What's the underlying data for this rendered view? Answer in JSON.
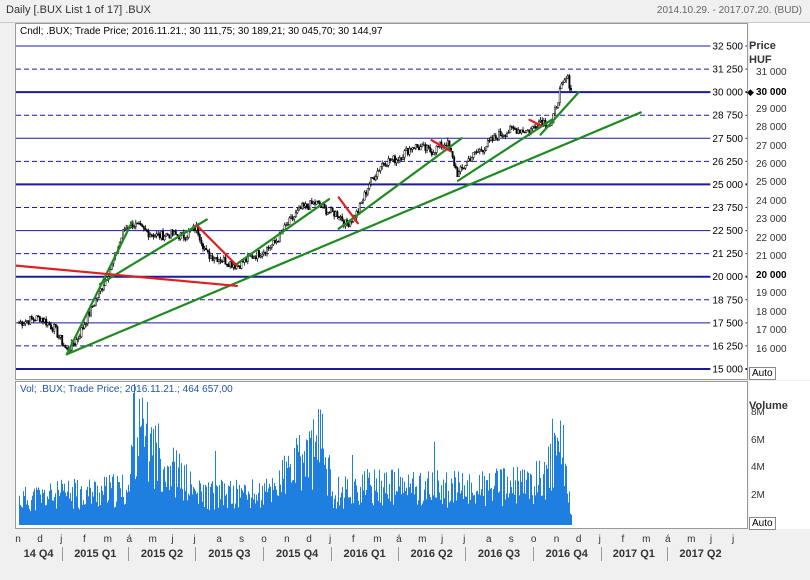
{
  "window": {
    "title": "Daily [.BUX List 1 of 17] .BUX",
    "date_range": "2014.10.29. - 2017.07.20. (BUD)"
  },
  "price_panel": {
    "header": "Cndl; .BUX; Trade Price; 2016.11.21.; 30 111,75; 30 189,21; 30 045,70; 30 144,97",
    "axis_title": "Price",
    "axis_unit": "HUF",
    "current_marker": "30 000",
    "auto_label": "Auto",
    "reference_lines": [
      {
        "value": 32500,
        "label": "32 500",
        "style": "solid"
      },
      {
        "value": 31250,
        "label": "31 250",
        "style": "dashed"
      },
      {
        "value": 30000,
        "label": "30 000",
        "style": "bold"
      },
      {
        "value": 28750,
        "label": "28 750",
        "style": "dashed"
      },
      {
        "value": 27500,
        "label": "27 500",
        "style": "solid"
      },
      {
        "value": 26250,
        "label": "26 250",
        "style": "dashed"
      },
      {
        "value": 25000,
        "label": "25 000",
        "style": "bold"
      },
      {
        "value": 23750,
        "label": "23 750",
        "style": "dashed"
      },
      {
        "value": 22500,
        "label": "22 500",
        "style": "solid"
      },
      {
        "value": 21250,
        "label": "21 250",
        "style": "dashed"
      },
      {
        "value": 20000,
        "label": "20 000",
        "style": "bold"
      },
      {
        "value": 18750,
        "label": "18 750",
        "style": "dashed"
      },
      {
        "value": 17500,
        "label": "17 500",
        "style": "solid"
      },
      {
        "value": 16250,
        "label": "16 250",
        "style": "dashed"
      },
      {
        "value": 15000,
        "label": "15 000",
        "style": "bold"
      }
    ],
    "right_ticks": [
      {
        "value": 31000,
        "label": "31 000",
        "bold": false
      },
      {
        "value": 30000,
        "label": "30 000",
        "bold": true
      },
      {
        "value": 29000,
        "label": "29 000",
        "bold": false
      },
      {
        "value": 28000,
        "label": "28 000",
        "bold": false
      },
      {
        "value": 27000,
        "label": "27 000",
        "bold": false
      },
      {
        "value": 26000,
        "label": "26 000",
        "bold": false
      },
      {
        "value": 25000,
        "label": "25 000",
        "bold": false
      },
      {
        "value": 24000,
        "label": "24 000",
        "bold": false
      },
      {
        "value": 23000,
        "label": "23 000",
        "bold": false
      },
      {
        "value": 22000,
        "label": "22 000",
        "bold": false
      },
      {
        "value": 21000,
        "label": "21 000",
        "bold": false
      },
      {
        "value": 20000,
        "label": "20 000",
        "bold": true
      },
      {
        "value": 19000,
        "label": "19 000",
        "bold": false
      },
      {
        "value": 18000,
        "label": "18 000",
        "bold": false
      },
      {
        "value": 17000,
        "label": "17 000",
        "bold": false
      },
      {
        "value": 16000,
        "label": "16 000",
        "bold": false
      }
    ],
    "colors": {
      "ref_line": "#1a1aa0",
      "up_trend": "#1f8a1f",
      "down_trend": "#e02020",
      "candle": "#000000"
    }
  },
  "volume_panel": {
    "header": "Vol; .BUX; Trade Price; 2016.11.21.; 464 657,00",
    "axis_title": "Volume",
    "auto_label": "Auto",
    "ticks": [
      {
        "value": 8000000,
        "label": "8M"
      },
      {
        "value": 6000000,
        "label": "6M"
      },
      {
        "value": 4000000,
        "label": "4M"
      },
      {
        "value": 2000000,
        "label": "2M"
      }
    ],
    "bar_color": "#1e7fe0"
  },
  "time_axis": {
    "months": [
      "n",
      "d",
      "j",
      "f",
      "m",
      "á",
      "m",
      "j",
      "j",
      "a",
      "s",
      "o",
      "n",
      "d",
      "j",
      "f",
      "m",
      "á",
      "m",
      "j",
      "j",
      "a",
      "s",
      "o",
      "n",
      "d",
      "j",
      "f",
      "m",
      "á",
      "m",
      "j",
      "j"
    ],
    "quarters": [
      "14 Q4",
      "2015 Q1",
      "2015 Q2",
      "2015 Q3",
      "2015 Q4",
      "2016 Q1",
      "2016 Q2",
      "2016 Q3",
      "2016 Q4",
      "2017 Q1",
      "2017 Q2"
    ]
  },
  "chart_data": {
    "type": "candlestick",
    "instrument": ".BUX",
    "x_range": [
      "2014.10.29.",
      "2017.07.20."
    ],
    "y_range": [
      15000,
      32500
    ],
    "close_path": [
      [
        "2014-11-01",
        17500
      ],
      [
        "2014-12-01",
        17800
      ],
      [
        "2014-12-20",
        17200
      ],
      [
        "2015-01-06",
        16000
      ],
      [
        "2015-01-20",
        16600
      ],
      [
        "2015-02-05",
        18000
      ],
      [
        "2015-02-20",
        19200
      ],
      [
        "2015-03-10",
        20800
      ],
      [
        "2015-03-25",
        22600
      ],
      [
        "2015-04-05",
        22900
      ],
      [
        "2015-04-20",
        22500
      ],
      [
        "2015-05-10",
        22200
      ],
      [
        "2015-05-25",
        22300
      ],
      [
        "2015-06-15",
        22200
      ],
      [
        "2015-07-01",
        22700
      ],
      [
        "2015-07-15",
        21200
      ],
      [
        "2015-08-01",
        21000
      ],
      [
        "2015-08-25",
        20600
      ],
      [
        "2015-09-10",
        21000
      ],
      [
        "2015-09-25",
        21300
      ],
      [
        "2015-10-15",
        21800
      ],
      [
        "2015-11-01",
        22800
      ],
      [
        "2015-11-20",
        23700
      ],
      [
        "2015-12-10",
        24000
      ],
      [
        "2015-12-28",
        23500
      ],
      [
        "2016-01-10",
        23400
      ],
      [
        "2016-01-20",
        22800
      ],
      [
        "2016-02-05",
        23500
      ],
      [
        "2016-02-20",
        25000
      ],
      [
        "2016-03-10",
        26200
      ],
      [
        "2016-03-30",
        26400
      ],
      [
        "2016-04-20",
        27100
      ],
      [
        "2016-05-15",
        26800
      ],
      [
        "2016-06-05",
        27300
      ],
      [
        "2016-06-20",
        25500
      ],
      [
        "2016-07-05",
        26400
      ],
      [
        "2016-07-25",
        27000
      ],
      [
        "2016-08-15",
        27700
      ],
      [
        "2016-09-05",
        28000
      ],
      [
        "2016-09-25",
        27900
      ],
      [
        "2016-10-10",
        28500
      ],
      [
        "2016-10-25",
        28200
      ],
      [
        "2016-11-05",
        30000
      ],
      [
        "2016-11-15",
        30800
      ],
      [
        "2016-11-21",
        30145
      ]
    ],
    "trendlines": [
      {
        "color": "green",
        "from": [
          "2015-01-06",
          15800
        ],
        "to": [
          "2017-02-23",
          28900
        ]
      },
      {
        "color": "green",
        "from": [
          "2015-01-06",
          15800
        ],
        "to": [
          "2015-04-05",
          23000
        ]
      },
      {
        "color": "green",
        "from": [
          "2015-02-20",
          19600
        ],
        "to": [
          "2015-07-15",
          23100
        ]
      },
      {
        "color": "green",
        "from": [
          "2015-08-25",
          20700
        ],
        "to": [
          "2015-12-28",
          24200
        ]
      },
      {
        "color": "green",
        "from": [
          "2016-01-10",
          22600
        ],
        "to": [
          "2016-06-25",
          27500
        ]
      },
      {
        "color": "green",
        "from": [
          "2016-06-20",
          25200
        ],
        "to": [
          "2016-10-25",
          28500
        ]
      },
      {
        "color": "green",
        "from": [
          "2016-10-10",
          27700
        ],
        "to": [
          "2016-12-01",
          30000
        ]
      },
      {
        "color": "red",
        "from": [
          "2014-10-29",
          20600
        ],
        "to": [
          "2015-08-25",
          19500
        ]
      },
      {
        "color": "red",
        "from": [
          "2015-07-01",
          22800
        ],
        "to": [
          "2015-08-25",
          20600
        ]
      },
      {
        "color": "red",
        "from": [
          "2016-01-10",
          24300
        ],
        "to": [
          "2016-02-05",
          22900
        ]
      },
      {
        "color": "red",
        "from": [
          "2016-05-15",
          27400
        ],
        "to": [
          "2016-06-10",
          26800
        ]
      },
      {
        "color": "red",
        "from": [
          "2016-09-25",
          28500
        ],
        "to": [
          "2016-10-10",
          28200
        ]
      }
    ],
    "volume_profile": [
      [
        "2014-11-01",
        2500000
      ],
      [
        "2015-01-01",
        3000000
      ],
      [
        "2015-04-01",
        3500000
      ],
      [
        "2015-04-06",
        9500000
      ],
      [
        "2015-07-01",
        3000000
      ],
      [
        "2015-10-01",
        3000000
      ],
      [
        "2015-12-18",
        8000000
      ],
      [
        "2016-01-01",
        3200000
      ],
      [
        "2016-03-01",
        3800000
      ],
      [
        "2016-07-01",
        3500000
      ],
      [
        "2016-09-30",
        4000000
      ],
      [
        "2016-11-10",
        7200000
      ],
      [
        "2016-11-21",
        464657
      ]
    ]
  }
}
